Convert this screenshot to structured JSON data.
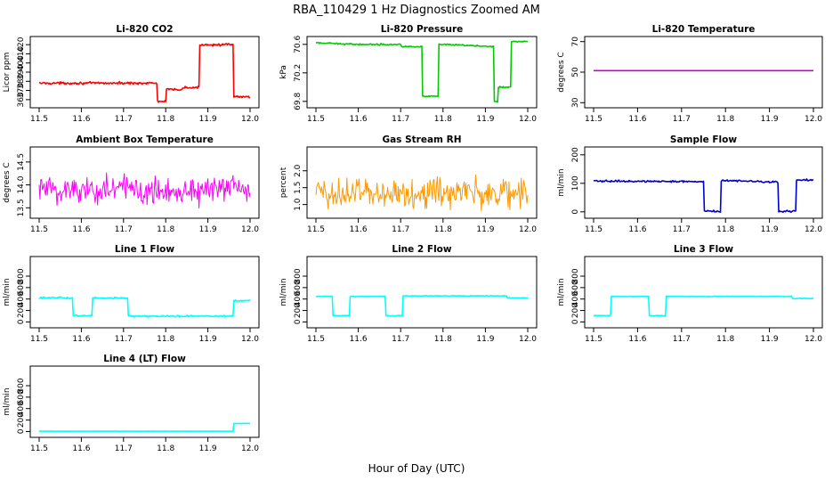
{
  "figure": {
    "title": "RBA_110429  1 Hz Diagnostics Zoomed AM",
    "xlabel": "Hour of Day (UTC)"
  },
  "chart_data": [
    {
      "type": "line",
      "title": "Li-820 CO2",
      "ylabel": "Licor ppm",
      "color": "#ff0000",
      "xlim": [
        11.5,
        12.0
      ],
      "ylim": [
        355,
        425
      ],
      "x_ticks": [
        11.5,
        11.6,
        11.7,
        11.8,
        11.9,
        12.0
      ],
      "y_ticks": [
        360,
        370,
        380,
        390,
        400,
        410,
        420
      ],
      "noise": 1.0,
      "x": [
        11.5,
        11.78,
        11.7801,
        11.8,
        11.8001,
        11.84,
        11.8401,
        11.88,
        11.8801,
        11.96,
        11.9601,
        12.0
      ],
      "y": [
        378,
        378,
        358,
        358,
        371,
        371,
        373,
        373,
        420,
        420,
        363,
        363
      ]
    },
    {
      "type": "line",
      "title": "Li-820 Pressure",
      "ylabel": "kPa",
      "color": "#00cc00",
      "xlim": [
        11.5,
        12.0
      ],
      "ylim": [
        69.76,
        70.66
      ],
      "x_ticks": [
        11.5,
        11.6,
        11.7,
        11.8,
        11.9,
        12.0
      ],
      "y_ticks": [
        69.8,
        70.2,
        70.6
      ],
      "noise": 0.008,
      "x": [
        11.5,
        11.6,
        11.7,
        11.7001,
        11.75,
        11.7501,
        11.79,
        11.7901,
        11.92,
        11.9201,
        11.93,
        11.9301,
        11.96,
        11.9601,
        12.0
      ],
      "y": [
        70.62,
        70.6,
        70.6,
        70.57,
        70.57,
        69.87,
        69.87,
        70.6,
        70.57,
        69.8,
        69.8,
        70.0,
        70.0,
        70.64,
        70.64
      ]
    },
    {
      "type": "line",
      "title": "Li-820 Temperature",
      "ylabel": "degrees C",
      "color": "#cc00cc",
      "xlim": [
        11.5,
        12.0
      ],
      "ylim": [
        29,
        71
      ],
      "x_ticks": [
        11.5,
        11.6,
        11.7,
        11.8,
        11.9,
        12.0
      ],
      "y_ticks": [
        30,
        50,
        70
      ],
      "noise": 0,
      "x": [
        11.5,
        12.0
      ],
      "y": [
        51,
        51
      ]
    },
    {
      "type": "line",
      "title": "Ambient Box Temperature",
      "ylabel": "degrees C",
      "color": "#ff00ff",
      "xlim": [
        11.5,
        12.0
      ],
      "ylim": [
        13.35,
        14.75
      ],
      "x_ticks": [
        11.5,
        11.6,
        11.7,
        11.8,
        11.9,
        12.0
      ],
      "y_ticks": [
        13.5,
        14.0,
        14.5
      ],
      "noise": 0.28,
      "x": [
        11.5,
        12.0
      ],
      "y": [
        13.9,
        13.9
      ]
    },
    {
      "type": "line",
      "title": "Gas Stream RH",
      "ylabel": "percent",
      "color": "#ff9900",
      "xlim": [
        11.5,
        12.0
      ],
      "ylim": [
        0.7,
        2.6
      ],
      "x_ticks": [
        11.5,
        11.6,
        11.7,
        11.8,
        11.9,
        12.0
      ],
      "y_ticks": [
        1.0,
        1.5,
        2.0
      ],
      "noise": 0.38,
      "x": [
        11.5,
        12.0
      ],
      "y": [
        1.35,
        1.35
      ]
    },
    {
      "type": "line",
      "title": "Sample Flow",
      "ylabel": "ml/min",
      "color": "#0000cc",
      "xlim": [
        11.5,
        12.0
      ],
      "ylim": [
        -10,
        215
      ],
      "x_ticks": [
        11.5,
        11.6,
        11.7,
        11.8,
        11.9,
        12.0
      ],
      "y_ticks": [
        0,
        100,
        200
      ],
      "noise": 2.5,
      "x": [
        11.5,
        11.75,
        11.7501,
        11.79,
        11.7901,
        11.92,
        11.9201,
        11.96,
        11.9601,
        12.0
      ],
      "y": [
        108,
        106,
        2,
        2,
        110,
        104,
        2,
        2,
        112,
        112
      ]
    },
    {
      "type": "line",
      "title": "Line 1 Flow",
      "ylabel": "ml/min",
      "color": "#00ffff",
      "xlim": [
        11.5,
        12.0
      ],
      "ylim": [
        -40,
        1080
      ],
      "x_ticks": [
        11.5,
        11.6,
        11.7,
        11.8,
        11.9,
        12.0
      ],
      "y_ticks": [
        0,
        200,
        400,
        600,
        800
      ],
      "noise": 12,
      "x": [
        11.5,
        11.58,
        11.5801,
        11.625,
        11.6251,
        11.71,
        11.7101,
        11.96,
        11.9601,
        12.0
      ],
      "y": [
        420,
        420,
        110,
        110,
        420,
        420,
        100,
        100,
        370,
        370
      ]
    },
    {
      "type": "line",
      "title": "Line 2 Flow",
      "ylabel": "ml/min",
      "color": "#00ffff",
      "xlim": [
        11.5,
        12.0
      ],
      "ylim": [
        -40,
        1080
      ],
      "x_ticks": [
        11.5,
        11.6,
        11.7,
        11.8,
        11.9,
        12.0
      ],
      "y_ticks": [
        0,
        200,
        400,
        600,
        800
      ],
      "noise": 5,
      "x": [
        11.5,
        11.54,
        11.5401,
        11.58,
        11.5801,
        11.665,
        11.6651,
        11.705,
        11.7051,
        11.95,
        11.9501,
        12.0
      ],
      "y": [
        445,
        445,
        110,
        110,
        445,
        445,
        110,
        110,
        455,
        455,
        420,
        420
      ]
    },
    {
      "type": "line",
      "title": "Line 3 Flow",
      "ylabel": "ml/min",
      "color": "#00ffff",
      "xlim": [
        11.5,
        12.0
      ],
      "ylim": [
        -40,
        1080
      ],
      "x_ticks": [
        11.5,
        11.6,
        11.7,
        11.8,
        11.9,
        12.0
      ],
      "y_ticks": [
        0,
        200,
        400,
        600,
        800
      ],
      "noise": 5,
      "x": [
        11.5,
        11.54,
        11.5401,
        11.625,
        11.6251,
        11.665,
        11.6651,
        11.95,
        11.9501,
        12.0
      ],
      "y": [
        110,
        110,
        445,
        445,
        110,
        110,
        445,
        445,
        410,
        410
      ]
    },
    {
      "type": "line",
      "title": "Line 4 (LT) Flow",
      "ylabel": "ml/min",
      "color": "#00ffff",
      "xlim": [
        11.5,
        12.0
      ],
      "ylim": [
        -40,
        1080
      ],
      "x_ticks": [
        11.5,
        11.6,
        11.7,
        11.8,
        11.9,
        12.0
      ],
      "y_ticks": [
        0,
        200,
        400,
        600,
        800
      ],
      "noise": 2,
      "x": [
        11.5,
        11.96,
        11.9601,
        12.0
      ],
      "y": [
        5,
        5,
        140,
        140
      ]
    }
  ]
}
